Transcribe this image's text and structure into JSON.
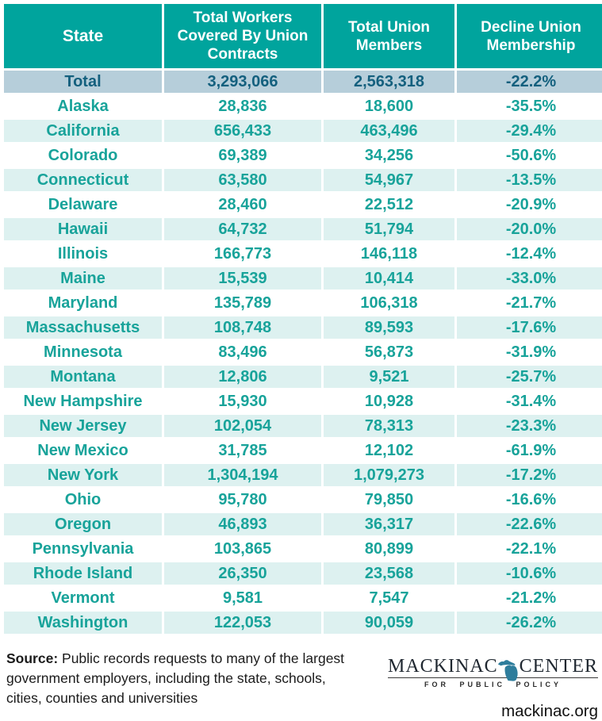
{
  "chart_data": {
    "type": "table",
    "columns": [
      "State",
      "Total Workers Covered By Union Contracts",
      "Total Union Members",
      "Decline Union Membership"
    ],
    "total_row": [
      "Total",
      "3,293,066",
      "2,563,318",
      "-22.2%"
    ],
    "rows": [
      [
        "Alaska",
        "28,836",
        "18,600",
        "-35.5%"
      ],
      [
        "California",
        "656,433",
        "463,496",
        "-29.4%"
      ],
      [
        "Colorado",
        "69,389",
        "34,256",
        "-50.6%"
      ],
      [
        "Connecticut",
        "63,580",
        "54,967",
        "-13.5%"
      ],
      [
        "Delaware",
        "28,460",
        "22,512",
        "-20.9%"
      ],
      [
        "Hawaii",
        "64,732",
        "51,794",
        "-20.0%"
      ],
      [
        "Illinois",
        "166,773",
        "146,118",
        "-12.4%"
      ],
      [
        "Maine",
        "15,539",
        "10,414",
        "-33.0%"
      ],
      [
        "Maryland",
        "135,789",
        "106,318",
        "-21.7%"
      ],
      [
        "Massachusetts",
        "108,748",
        "89,593",
        "-17.6%"
      ],
      [
        "Minnesota",
        "83,496",
        "56,873",
        "-31.9%"
      ],
      [
        "Montana",
        "12,806",
        "9,521",
        "-25.7%"
      ],
      [
        "New Hampshire",
        "15,930",
        "10,928",
        "-31.4%"
      ],
      [
        "New Jersey",
        "102,054",
        "78,313",
        "-23.3%"
      ],
      [
        "New Mexico",
        "31,785",
        "12,102",
        "-61.9%"
      ],
      [
        "New York",
        "1,304,194",
        "1,079,273",
        "-17.2%"
      ],
      [
        "Ohio",
        "95,780",
        "79,850",
        "-16.6%"
      ],
      [
        "Oregon",
        "46,893",
        "36,317",
        "-22.6%"
      ],
      [
        "Pennsylvania",
        "103,865",
        "80,899",
        "-22.1%"
      ],
      [
        "Rhode Island",
        "26,350",
        "23,568",
        "-10.6%"
      ],
      [
        "Vermont",
        "9,581",
        "7,547",
        "-21.2%"
      ],
      [
        "Washington",
        "122,053",
        "90,059",
        "-26.2%"
      ]
    ]
  },
  "footer": {
    "source": {
      "label": "Source:",
      "text": "Public records requests to many of the largest government employers, including the state, schools, cities, counties and universities"
    },
    "logo": {
      "word_left": "MACKINAC",
      "word_right": "CENTER",
      "tagline": "FOR PUBLIC POLICY",
      "url": "mackinac.org",
      "icon": "michigan-state-icon"
    }
  },
  "colors": {
    "header_bg": "#00A49D",
    "header_text": "#FFFFFF",
    "total_row_bg": "#B6CEDA",
    "total_row_text": "#14607E",
    "row_alt_bg": "#DDF1F0",
    "row_text": "#18A39A",
    "footer_text": "#1B1B1B",
    "logo_text": "#1F2730",
    "michigan_icon": "#2E7D9C"
  }
}
